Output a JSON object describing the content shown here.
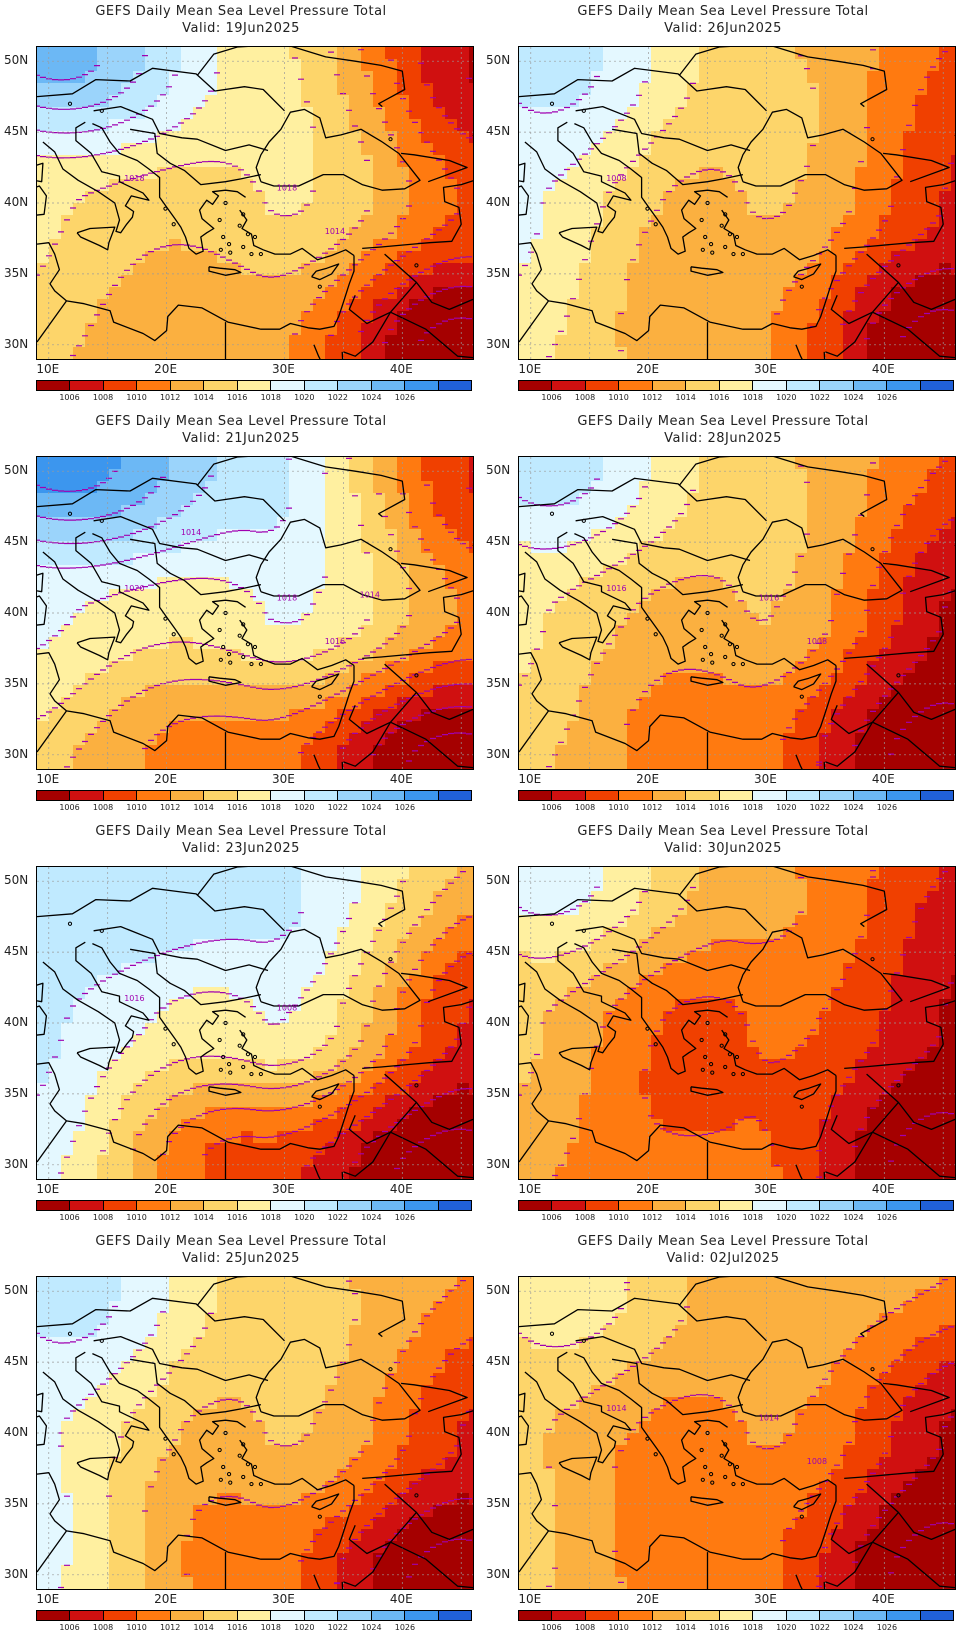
{
  "colors": {
    "bands": [
      "#a50000",
      "#d01010",
      "#f04000",
      "#ff7a10",
      "#fbb040",
      "#fdd56a",
      "#fff0a0",
      "#e4f8ff",
      "#c0eaff",
      "#9bd4fb",
      "#6cb8f5",
      "#3c96ee",
      "#2060d8"
    ],
    "isobar": "#a000b0",
    "coast": "#000000",
    "grid": "#9a9a9a"
  },
  "colorbar_ticks": [
    "1006",
    "1008",
    "1010",
    "1012",
    "1014",
    "1016",
    "1018",
    "1020",
    "1022",
    "1024",
    "1026"
  ],
  "lat_ticks": [
    "50N",
    "45N",
    "40N",
    "35N",
    "30N"
  ],
  "lon_ticks": [
    "10E",
    "20E",
    "30E",
    "40E"
  ],
  "panels": [
    {
      "title": "GEFS Daily Mean Sea Level Pressure Total",
      "valid": "Valid: 19Jun2025",
      "isobar_labels": [
        "1018",
        "1018",
        "1014"
      ],
      "pressure": {
        "NW": 1024,
        "N": 1018,
        "NE": 1006,
        "W": 1016,
        "C": 1016,
        "E": 1010,
        "SW": 1014,
        "S": 1012,
        "SE": 1004
      }
    },
    {
      "title": "GEFS Daily Mean Sea Level Pressure Total",
      "valid": "Valid: 26Jun2025",
      "isobar_labels": [
        "1008"
      ],
      "pressure": {
        "NW": 1020,
        "N": 1016,
        "NE": 1010,
        "W": 1018,
        "C": 1014,
        "E": 1008,
        "SW": 1016,
        "S": 1012,
        "SE": 1004
      }
    },
    {
      "title": "GEFS Daily Mean Sea Level Pressure Total",
      "valid": "Valid: 21Jun2025",
      "isobar_labels": [
        "1020",
        "1018",
        "1016",
        "1014",
        "1014"
      ],
      "pressure": {
        "NW": 1026,
        "N": 1022,
        "NE": 1008,
        "W": 1018,
        "C": 1018,
        "E": 1012,
        "SW": 1014,
        "S": 1010,
        "SE": 1004
      }
    },
    {
      "title": "GEFS Daily Mean Sea Level Pressure Total",
      "valid": "Valid: 28Jun2025",
      "isobar_labels": [
        "1016",
        "1016",
        "1008"
      ],
      "pressure": {
        "NW": 1020,
        "N": 1016,
        "NE": 1010,
        "W": 1016,
        "C": 1014,
        "E": 1006,
        "SW": 1014,
        "S": 1010,
        "SE": 1004
      }
    },
    {
      "title": "GEFS Daily Mean Sea Level Pressure Total",
      "valid": "Valid: 23Jun2025",
      "isobar_labels": [
        "1016",
        "1008"
      ],
      "pressure": {
        "NW": 1020,
        "N": 1022,
        "NE": 1014,
        "W": 1020,
        "C": 1018,
        "E": 1008,
        "SW": 1018,
        "S": 1008,
        "SE": 1004
      }
    },
    {
      "title": "GEFS Daily Mean Sea Level Pressure Total",
      "valid": "Valid: 30Jun2025",
      "isobar_labels": [],
      "pressure": {
        "NW": 1018,
        "N": 1014,
        "NE": 1008,
        "W": 1014,
        "C": 1010,
        "E": 1006,
        "SW": 1012,
        "S": 1010,
        "SE": 1004
      }
    },
    {
      "title": "GEFS Daily Mean Sea Level Pressure Total",
      "valid": "Valid: 25Jun2025",
      "isobar_labels": [],
      "pressure": {
        "NW": 1020,
        "N": 1016,
        "NE": 1012,
        "W": 1018,
        "C": 1014,
        "E": 1008,
        "SW": 1018,
        "S": 1010,
        "SE": 1004
      }
    },
    {
      "title": "GEFS Daily Mean Sea Level Pressure Total",
      "valid": "Valid: 02Jul2025",
      "isobar_labels": [
        "1014",
        "1014",
        "1008"
      ],
      "pressure": {
        "NW": 1016,
        "N": 1014,
        "NE": 1012,
        "W": 1014,
        "C": 1012,
        "E": 1006,
        "SW": 1014,
        "S": 1010,
        "SE": 1004
      }
    }
  ]
}
